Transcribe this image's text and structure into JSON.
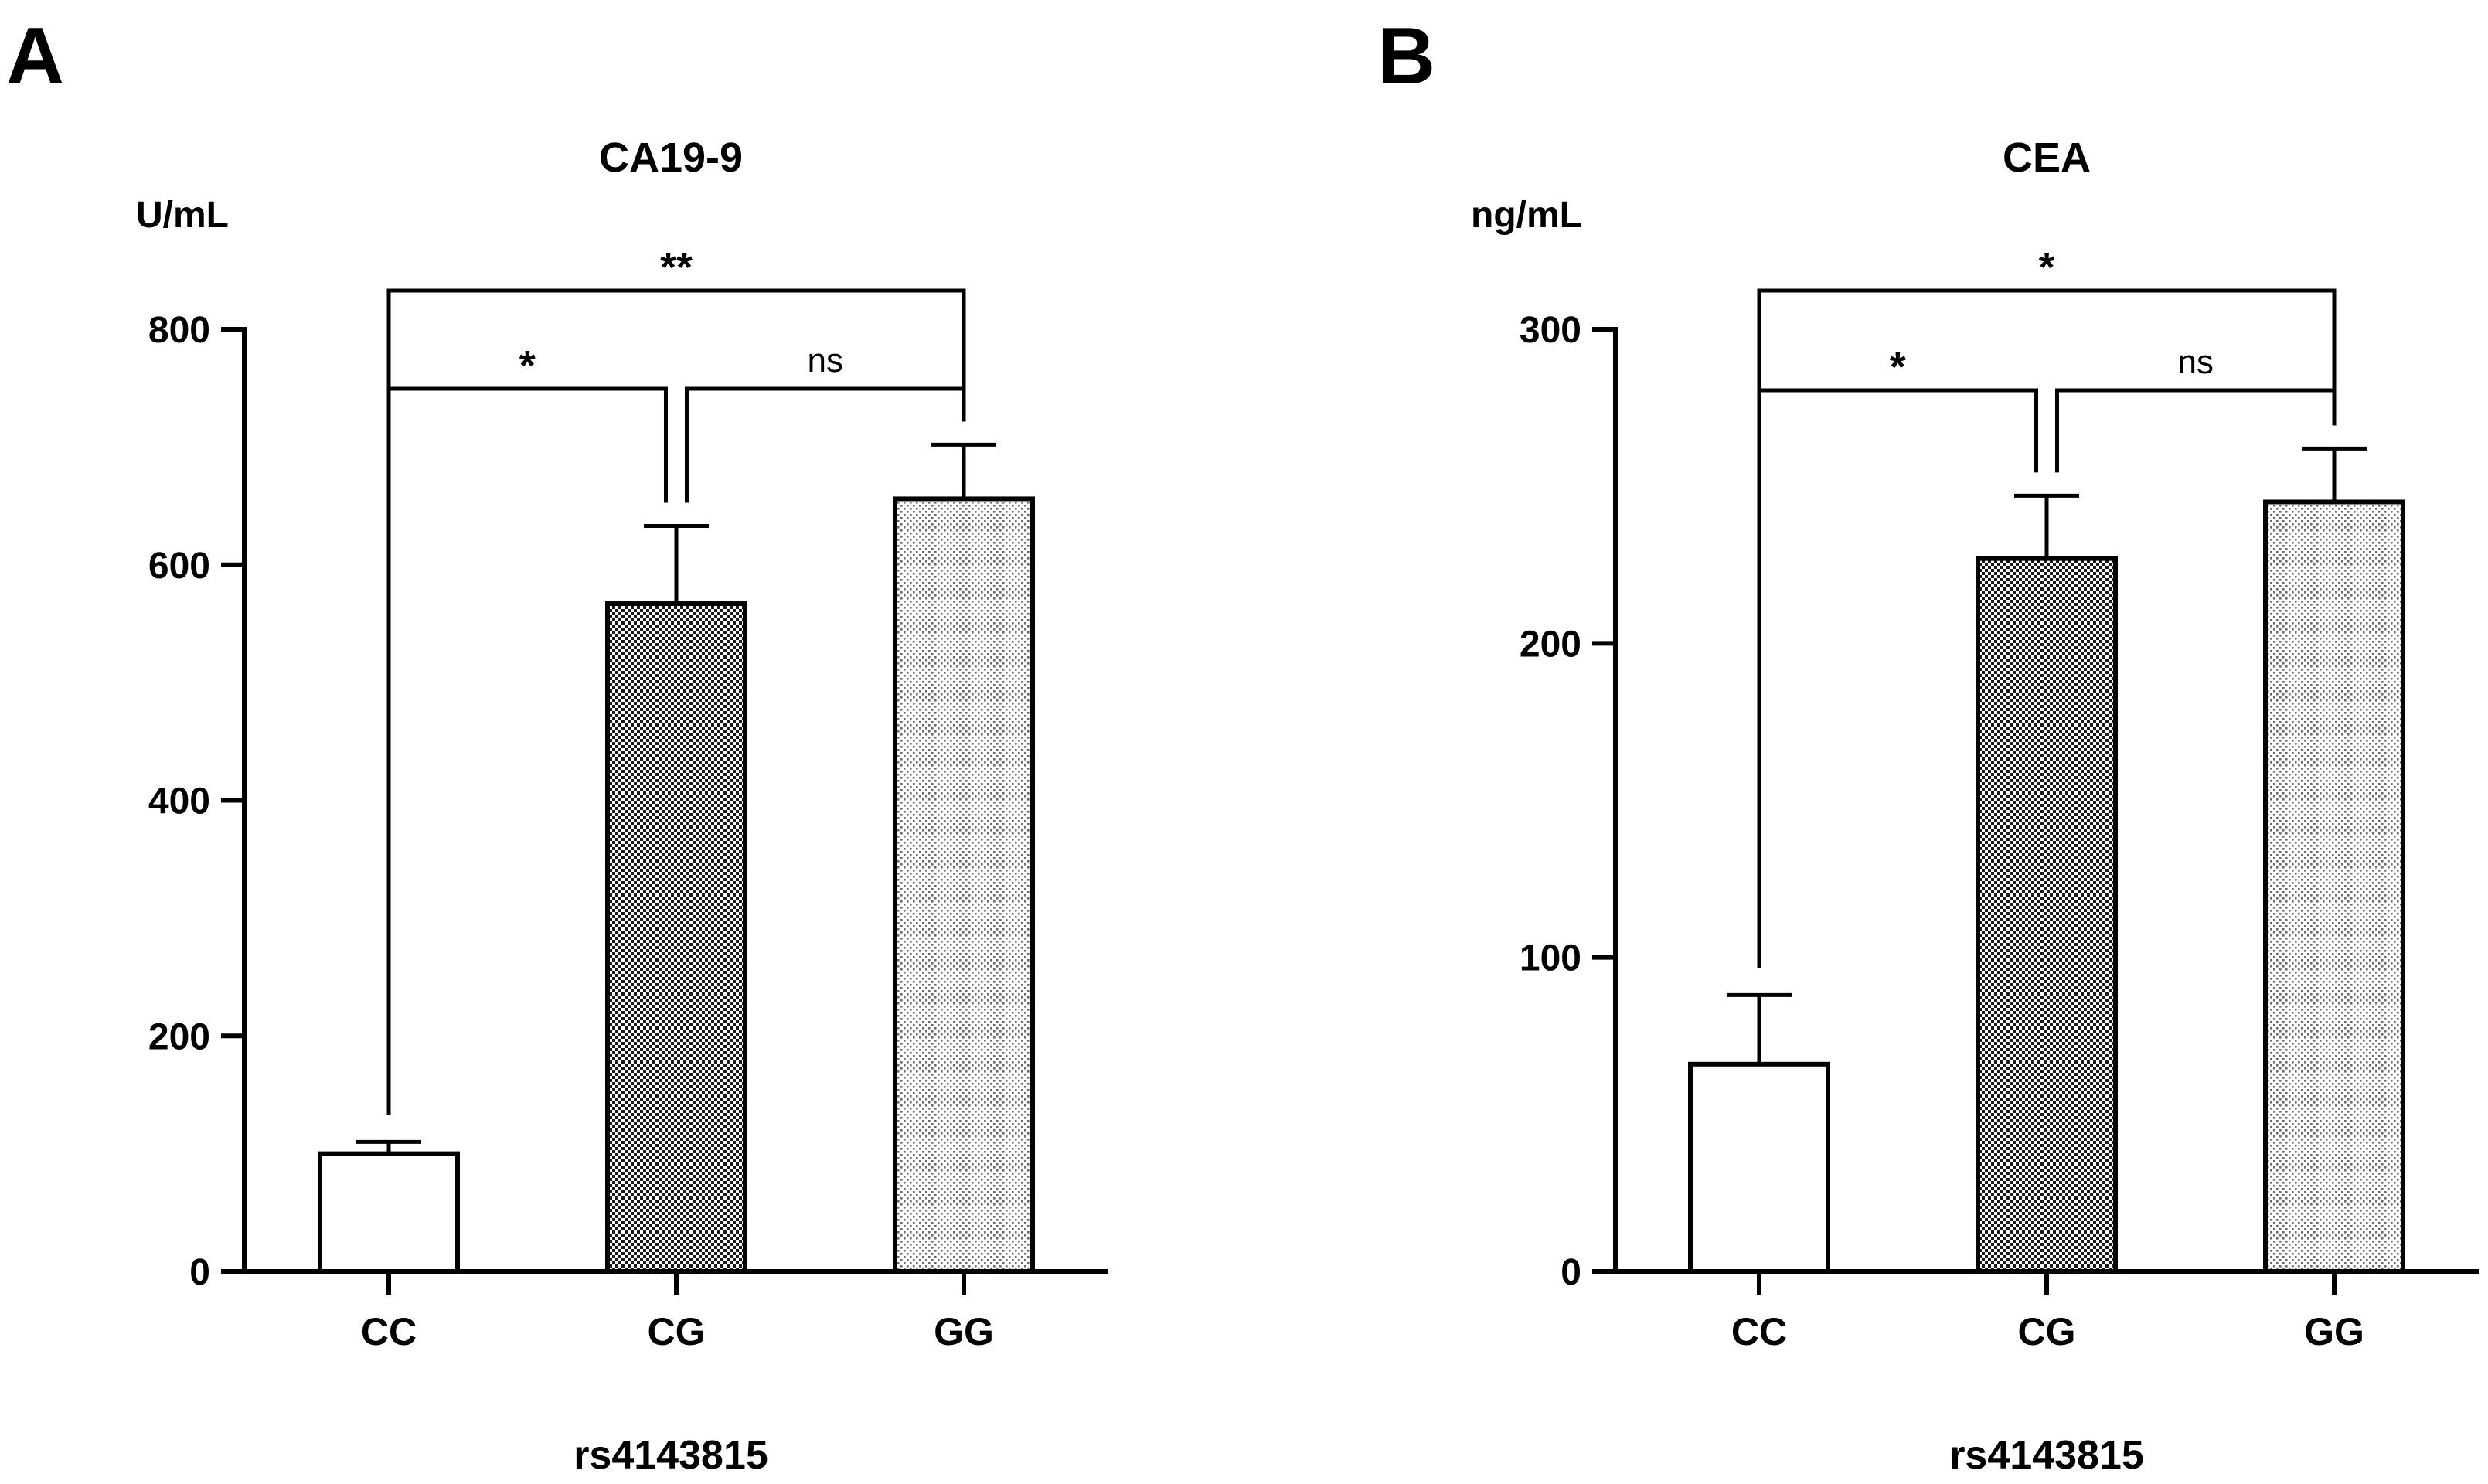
{
  "chart_data": [
    {
      "panel": "A",
      "type": "bar",
      "title": "CA19-9",
      "ylabel": "U/mL",
      "xlabel": "rs4143815",
      "categories": [
        "CC",
        "CG",
        "GG"
      ],
      "values": [
        100,
        567,
        656
      ],
      "errors": [
        10,
        66,
        46
      ],
      "patterns": [
        "none",
        "checker",
        "dots"
      ],
      "ylim": [
        0,
        800
      ],
      "yticks": [
        0,
        200,
        400,
        600,
        800
      ],
      "significance": [
        {
          "from": 0,
          "to": 1,
          "label": "*",
          "level": 1
        },
        {
          "from": 1,
          "to": 2,
          "label": "ns",
          "level": 1
        },
        {
          "from": 0,
          "to": 2,
          "label": "**",
          "level": 2
        }
      ]
    },
    {
      "panel": "B",
      "type": "bar",
      "title": "CEA",
      "ylabel": "ng/mL",
      "xlabel": "rs4143815",
      "categories": [
        "CC",
        "CG",
        "GG"
      ],
      "values": [
        66,
        227,
        245
      ],
      "errors": [
        22,
        20,
        17
      ],
      "patterns": [
        "none",
        "checker",
        "dots"
      ],
      "ylim": [
        0,
        300
      ],
      "yticks": [
        0,
        100,
        200,
        300
      ],
      "significance": [
        {
          "from": 0,
          "to": 1,
          "label": "*",
          "level": 1
        },
        {
          "from": 1,
          "to": 2,
          "label": "ns",
          "level": 1
        },
        {
          "from": 0,
          "to": 2,
          "label": "*",
          "level": 2
        }
      ]
    }
  ]
}
